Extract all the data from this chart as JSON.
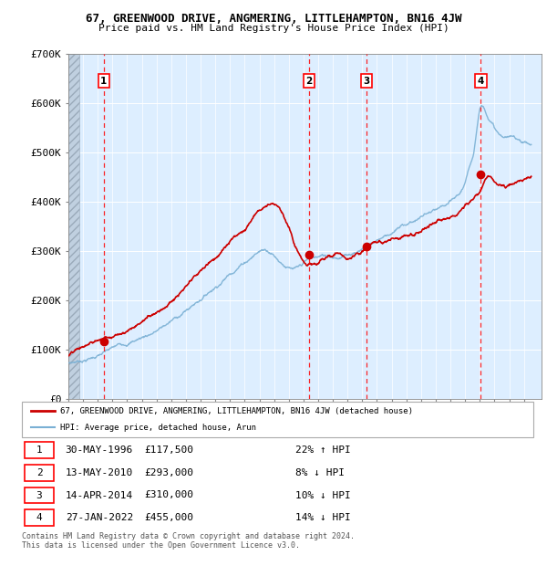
{
  "title": "67, GREENWOOD DRIVE, ANGMERING, LITTLEHAMPTON, BN16 4JW",
  "subtitle": "Price paid vs. HM Land Registry's House Price Index (HPI)",
  "sales": [
    {
      "year": 1996.41,
      "price": 117500,
      "label": "1"
    },
    {
      "year": 2010.37,
      "price": 293000,
      "label": "2"
    },
    {
      "year": 2014.28,
      "price": 310000,
      "label": "3"
    },
    {
      "year": 2022.07,
      "price": 455000,
      "label": "4"
    }
  ],
  "sale_annotations": [
    {
      "num": 1,
      "date": "30-MAY-1996",
      "price": "£117,500",
      "change": "22% ↑ HPI"
    },
    {
      "num": 2,
      "date": "13-MAY-2010",
      "price": "£293,000",
      "change": "8% ↓ HPI"
    },
    {
      "num": 3,
      "date": "14-APR-2014",
      "price": "£310,000",
      "change": "10% ↓ HPI"
    },
    {
      "num": 4,
      "date": "27-JAN-2022",
      "price": "£455,000",
      "change": "14% ↓ HPI"
    }
  ],
  "legend_line1": "67, GREENWOOD DRIVE, ANGMERING, LITTLEHAMPTON, BN16 4JW (detached house)",
  "legend_line2": "HPI: Average price, detached house, Arun",
  "footer": "Contains HM Land Registry data © Crown copyright and database right 2024.\nThis data is licensed under the Open Government Licence v3.0.",
  "plot_bg": "#ddeeff",
  "red_line_color": "#cc0000",
  "blue_line_color": "#7ab0d4",
  "label_box_color": "#cc0000",
  "ylim": [
    0,
    700000
  ],
  "yticks": [
    0,
    100000,
    200000,
    300000,
    400000,
    500000,
    600000,
    700000
  ],
  "ytick_labels": [
    "£0",
    "£100K",
    "£200K",
    "£300K",
    "£400K",
    "£500K",
    "£600K",
    "£700K"
  ]
}
